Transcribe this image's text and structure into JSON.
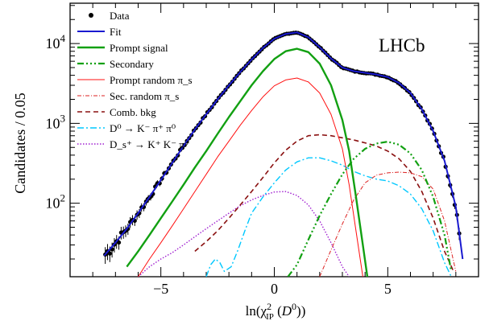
{
  "chart_data": {
    "type": "line",
    "title": "",
    "watermark": "LHCb",
    "xlabel": "ln(χ²_IP (D⁰))",
    "xlabel_parts": {
      "main": "ln(χ",
      "sup": "2",
      "sub": "IP",
      "rest1": " (",
      "italic": "D",
      "sup2": "0",
      "rest2": "))"
    },
    "ylabel": "Candidates / 0.05",
    "x_range": [
      -9,
      9
    ],
    "y_range": [
      12,
      32000
    ],
    "y_scale": "log",
    "x_ticks": [
      -5,
      0,
      5
    ],
    "x_tick_labels": [
      "−5",
      "0",
      "5"
    ],
    "y_ticks": [
      100,
      1000,
      10000
    ],
    "y_tick_labels": [
      {
        "base": "10",
        "exp": "2"
      },
      {
        "base": "10",
        "exp": "3"
      },
      {
        "base": "10",
        "exp": "4"
      }
    ],
    "legend_position": "top-left",
    "series": [
      {
        "key": "data",
        "name": "Data",
        "kind": "points",
        "color": "#000000"
      },
      {
        "key": "fit",
        "name": "Fit",
        "color": "#1a1ad0",
        "width": 2.0,
        "dash": "",
        "x": [
          -7.5,
          -7.0,
          -6.5,
          -6.0,
          -5.5,
          -5.0,
          -4.5,
          -4.0,
          -3.5,
          -3.0,
          -2.5,
          -2.0,
          -1.5,
          -1.0,
          -0.5,
          0.0,
          0.5,
          1.0,
          1.5,
          2.0,
          2.5,
          3.0,
          3.5,
          4.0,
          4.5,
          5.0,
          5.5,
          6.0,
          6.5,
          7.0,
          7.5,
          8.0,
          8.3
        ],
        "y": [
          22,
          32,
          48,
          75,
          120,
          195,
          320,
          520,
          840,
          1300,
          2000,
          3000,
          4400,
          6300,
          8800,
          11500,
          13200,
          13800,
          12000,
          9000,
          6500,
          5000,
          4500,
          4300,
          4100,
          3800,
          3200,
          2400,
          1500,
          800,
          340,
          90,
          20
        ]
      },
      {
        "key": "prompt_signal",
        "name": "Prompt signal",
        "color": "#12a012",
        "width": 2.4,
        "dash": "",
        "x": [
          -6.5,
          -6.0,
          -5.5,
          -5.0,
          -4.5,
          -4.0,
          -3.5,
          -3.0,
          -2.5,
          -2.0,
          -1.5,
          -1.0,
          -0.5,
          0.0,
          0.5,
          1.0,
          1.5,
          2.0,
          2.5,
          3.0,
          3.3,
          3.6,
          3.9,
          4.1
        ],
        "y": [
          16,
          25,
          40,
          65,
          105,
          170,
          280,
          450,
          740,
          1200,
          1900,
          3000,
          4500,
          6400,
          8000,
          8600,
          7800,
          5600,
          3000,
          1100,
          450,
          120,
          30,
          12
        ]
      },
      {
        "key": "secondary",
        "name": "Secondary",
        "color": "#12a012",
        "width": 2.2,
        "dash": "8,3,2,3,2,3,2,3",
        "x": [
          0.6,
          1.0,
          1.5,
          2.0,
          2.5,
          3.0,
          3.5,
          4.0,
          4.5,
          5.0,
          5.5,
          6.0,
          6.5,
          7.0,
          7.5,
          7.8
        ],
        "y": [
          12,
          17,
          35,
          70,
          130,
          230,
          360,
          480,
          560,
          590,
          540,
          420,
          260,
          120,
          40,
          14
        ]
      },
      {
        "key": "prompt_random_pis",
        "name": "Prompt random π_s",
        "color": "#ff1010",
        "width": 1.0,
        "dash": "",
        "x": [
          -6.0,
          -5.5,
          -5.0,
          -4.5,
          -4.0,
          -3.5,
          -3.0,
          -2.5,
          -2.0,
          -1.5,
          -1.0,
          -0.5,
          0.0,
          0.5,
          1.0,
          1.5,
          2.0,
          2.5,
          3.0,
          3.3,
          3.6,
          3.9
        ],
        "y": [
          12,
          20,
          32,
          52,
          85,
          140,
          230,
          380,
          600,
          950,
          1450,
          2150,
          2950,
          3500,
          3700,
          3300,
          2400,
          1300,
          480,
          170,
          45,
          12
        ]
      },
      {
        "key": "sec_random_pis",
        "name": "Sec. random π_s",
        "color": "#dd2222",
        "width": 1.0,
        "dash": "5,2,1,2",
        "x": [
          2.0,
          2.5,
          3.0,
          3.5,
          4.0,
          4.5,
          5.0,
          5.5,
          6.0,
          6.5,
          7.0,
          7.5,
          8.0
        ],
        "y": [
          12,
          26,
          55,
          110,
          180,
          225,
          240,
          245,
          240,
          215,
          150,
          60,
          14
        ]
      },
      {
        "key": "comb_bkg",
        "name": "Comb. bkg",
        "color": "#8a1010",
        "width": 1.6,
        "dash": "6,4",
        "x": [
          -3.5,
          -3.0,
          -2.5,
          -2.0,
          -1.5,
          -1.0,
          -0.5,
          0.0,
          0.5,
          1.0,
          1.5,
          2.0,
          2.5,
          3.0,
          3.5,
          4.0,
          4.5,
          5.0,
          5.5,
          6.0,
          6.5,
          7.0,
          7.5,
          7.9
        ],
        "y": [
          25,
          33,
          45,
          65,
          95,
          140,
          210,
          320,
          460,
          600,
          700,
          720,
          700,
          660,
          620,
          570,
          520,
          450,
          360,
          250,
          140,
          65,
          25,
          14
        ]
      },
      {
        "key": "d0_kpipi0",
        "name": "D⁰ → K⁻ π⁺ π⁰",
        "color": "#00c8ff",
        "width": 1.4,
        "dash": "8,3,2,3",
        "x": [
          -3.0,
          -2.8,
          -2.6,
          -2.4,
          -2.2,
          -1.9,
          -1.6,
          -1.3,
          -1.0,
          -0.5,
          0.0,
          0.5,
          1.0,
          1.5,
          2.0,
          2.5,
          3.0,
          3.5,
          4.0,
          4.5,
          5.0,
          5.5,
          6.0,
          6.5,
          7.0,
          7.5,
          7.8
        ],
        "y": [
          12,
          17,
          20,
          18,
          14,
          16,
          26,
          45,
          75,
          120,
          180,
          260,
          330,
          370,
          370,
          340,
          300,
          250,
          220,
          200,
          190,
          165,
          130,
          85,
          45,
          18,
          12
        ]
      },
      {
        "key": "ds_kkpi",
        "name": "D_s⁺ → K⁺ K⁻ π⁺",
        "color": "#a020d0",
        "width": 1.4,
        "dash": "1.5,2",
        "x": [
          -6.0,
          -5.5,
          -5.0,
          -4.5,
          -4.0,
          -3.5,
          -3.0,
          -2.5,
          -2.0,
          -1.5,
          -1.0,
          -0.5,
          0.0,
          0.5,
          1.0,
          1.5,
          2.0,
          2.5,
          3.0,
          3.3
        ],
        "y": [
          12,
          16,
          20,
          24,
          30,
          38,
          48,
          60,
          75,
          93,
          110,
          125,
          138,
          140,
          125,
          95,
          60,
          32,
          16,
          12
        ]
      }
    ]
  }
}
